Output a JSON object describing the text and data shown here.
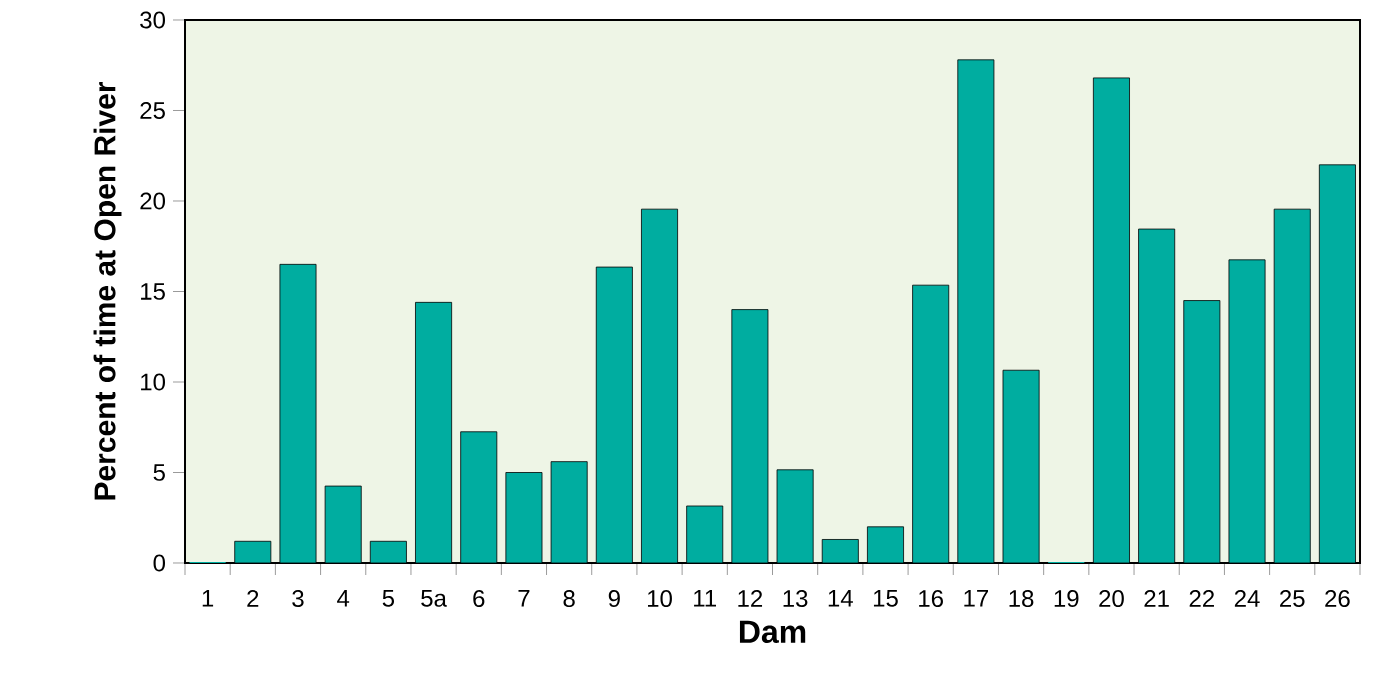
{
  "chart_data": {
    "type": "bar",
    "xlabel": "Dam",
    "ylabel": "Percent of time at Open River",
    "categories": [
      "1",
      "2",
      "3",
      "4",
      "5",
      "5a",
      "6",
      "7",
      "8",
      "9",
      "10",
      "11",
      "12",
      "13",
      "14",
      "15",
      "16",
      "17",
      "18",
      "19",
      "20",
      "21",
      "22",
      "24",
      "25",
      "26"
    ],
    "values": [
      0,
      1.2,
      16.5,
      4.25,
      1.2,
      14.4,
      7.25,
      5.0,
      5.6,
      16.35,
      19.55,
      3.15,
      14.0,
      5.15,
      1.3,
      2.0,
      15.35,
      27.8,
      10.65,
      0,
      26.8,
      18.45,
      14.5,
      16.75,
      19.55,
      22.0
    ],
    "color": "#00ada0",
    "ylim": [
      0,
      30
    ],
    "yticks": [
      0,
      5,
      10,
      15,
      20,
      25,
      30
    ],
    "grid": false
  }
}
